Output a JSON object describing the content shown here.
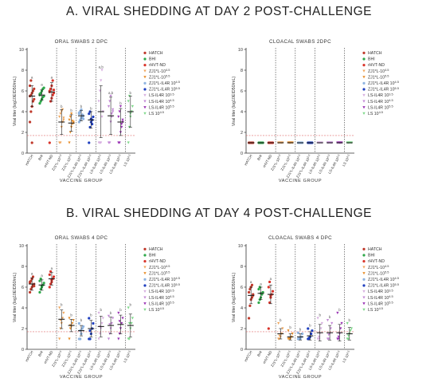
{
  "sections": [
    {
      "title": "A. VIRAL SHEDDING AT DAY 2 POST-CHALLENGE"
    },
    {
      "title": "B. VIRAL SHEDDING AT DAY 4 POST-CHALLENGE"
    }
  ],
  "groups": [
    "HATCH",
    "BHI",
    "rHVT-ND",
    "ZJ1*L-10^4.5",
    "ZJ1*L-10^5.5",
    "ZJ1*L-IL4R 10^4.5",
    "ZJ1*L-IL4R 10^5.5",
    "LS-IL4R 10^3.5",
    "LS-IL4R 10^4.5",
    "LS-IL4R 10^5.5",
    "LS 10^4.5"
  ],
  "legend_labels": [
    "HATCH",
    "BHI",
    "rHVT-ND",
    "ZJ1*L-10^4.5",
    "ZJ1*L-10^5.5",
    "ZJ1*L-IL4R 10^4.5",
    "ZJ1*L-IL4R 10^5.5",
    "LS-IL4R 10^3.5",
    "LS-IL4R 10^4.5",
    "LS-IL4R 10^5.5",
    "LS 10^4.5"
  ],
  "colors": [
    "#c0392b",
    "#2ea84a",
    "#d9342b",
    "#f0a860",
    "#e8902e",
    "#8fb4e0",
    "#1f3fbf",
    "#d8b0e0",
    "#c48ad6",
    "#9b35b5",
    "#7ed98a"
  ],
  "chart_data": [
    {
      "type": "scatter",
      "title": "ORAL SWABS 2 DPC",
      "xlabel": "VACCINE GROUP",
      "ylabel": "Viral titer (log10EID50/mL)",
      "ylim": [
        0,
        10
      ],
      "yticks": [
        0,
        2,
        4,
        6,
        8,
        10
      ],
      "detection_limit": 1.7,
      "separators_after_group": [
        2,
        4,
        6,
        9
      ],
      "means": [
        5.5,
        5.6,
        5.9,
        3.0,
        2.9,
        3.6,
        3.2,
        4.0,
        3.6,
        3.0,
        4.0
      ],
      "sd": [
        1.0,
        0.5,
        0.9,
        1.2,
        0.8,
        0.5,
        0.8,
        2.5,
        1.8,
        1.3,
        1.5
      ],
      "annotations": [
        "a",
        "a",
        "a",
        "b",
        "b",
        "b",
        "b",
        "a,b",
        "a,b",
        "b",
        "b"
      ],
      "points": [
        [
          3.0,
          4.0,
          4.5,
          5.0,
          5.2,
          5.5,
          5.6,
          5.8,
          6.0,
          6.2,
          6.5,
          7.0,
          1.0
        ],
        [
          4.8,
          5.0,
          5.2,
          5.4,
          5.5,
          5.6,
          5.8,
          6.0,
          6.2,
          6.3,
          5.7
        ],
        [
          1.0,
          5.0,
          5.3,
          5.6,
          5.8,
          6.0,
          6.2,
          6.5,
          7.0,
          6.1,
          5.9
        ],
        [
          1.0,
          1.0,
          2.5,
          3.0,
          3.2,
          3.5,
          3.8,
          4.0,
          4.2,
          3.4
        ],
        [
          1.0,
          2.0,
          2.5,
          2.8,
          3.0,
          3.2,
          3.5,
          3.8,
          3.1,
          2.9
        ],
        [
          3.0,
          3.2,
          3.4,
          3.5,
          3.6,
          3.8,
          4.0,
          4.2,
          3.7,
          3.3,
          3.9
        ],
        [
          1.0,
          2.5,
          3.0,
          3.2,
          3.5,
          3.8,
          4.0,
          3.3,
          2.8
        ],
        [
          1.0,
          1.0,
          1.0,
          3.5,
          4.0,
          5.0,
          6.0,
          7.0,
          8.0
        ],
        [
          1.0,
          1.0,
          3.0,
          3.5,
          4.0,
          4.5,
          5.0,
          5.5,
          3.8,
          4.2
        ],
        [
          1.0,
          1.0,
          2.0,
          2.5,
          3.0,
          3.5,
          4.0,
          4.5,
          2.8,
          3.2
        ],
        [
          1.0,
          2.5,
          3.5,
          4.0,
          4.5,
          5.0,
          5.5,
          3.8
        ]
      ]
    },
    {
      "type": "scatter",
      "title": "CLOACAL SWABS 2DPC",
      "xlabel": "VACCINE GROUP",
      "ylabel": "Viral titer (log10EID50/mL)",
      "ylim": [
        0,
        10
      ],
      "yticks": [
        0,
        2,
        4,
        6,
        8,
        10
      ],
      "detection_limit": 1.7,
      "separators_after_group": [
        2,
        4,
        6,
        9
      ],
      "means": [
        1.0,
        1.0,
        1.0,
        1.0,
        1.0,
        1.0,
        1.0,
        1.0,
        1.0,
        1.0,
        1.0
      ],
      "sd": [
        0,
        0,
        0,
        0,
        0,
        0,
        0,
        0,
        0,
        0,
        0
      ],
      "annotations": [
        "",
        "",
        "",
        "",
        "",
        "",
        "",
        "",
        "",
        "",
        ""
      ],
      "points": [
        [
          1.0,
          1.0,
          1.0,
          1.0,
          1.0
        ],
        [
          1.0,
          1.0,
          1.0,
          1.0,
          1.0
        ],
        [
          1.0,
          1.0,
          1.0,
          1.0,
          1.0
        ],
        [
          1.0,
          1.0,
          1.0,
          1.0,
          1.0
        ],
        [
          1.0,
          1.0,
          1.0,
          1.0,
          1.0
        ],
        [
          1.0,
          1.0,
          1.0,
          1.0,
          1.0
        ],
        [
          1.0,
          1.0,
          1.0,
          1.0,
          1.0
        ],
        [
          1.0,
          1.0,
          1.0,
          1.0,
          1.0
        ],
        [
          1.0,
          1.0,
          1.0,
          1.0,
          1.0
        ],
        [
          1.0,
          1.0,
          1.0,
          1.0,
          1.0
        ],
        [
          1.0,
          1.0,
          1.0,
          1.0,
          1.0
        ]
      ]
    },
    {
      "type": "scatter",
      "title": "ORAL SWABS 4 DPC",
      "xlabel": "VACCINE GROUP",
      "ylabel": "Viral titer (log10EID50/mL)",
      "ylim": [
        0,
        10
      ],
      "yticks": [
        0,
        2,
        4,
        6,
        8,
        10
      ],
      "detection_limit": 1.7,
      "separators_after_group": [
        2,
        4,
        6,
        9
      ],
      "means": [
        6.3,
        6.2,
        6.8,
        2.9,
        2.3,
        1.8,
        2.0,
        2.2,
        2.3,
        2.4,
        2.3
      ],
      "sd": [
        0.6,
        0.5,
        0.6,
        0.9,
        0.6,
        0.5,
        0.8,
        1.0,
        0.8,
        0.9,
        1.1
      ],
      "annotations": [
        "a",
        "a",
        "a",
        "b",
        "b",
        "b",
        "b",
        "b",
        "b",
        "b",
        "b"
      ],
      "points": [
        [
          5.5,
          5.8,
          6.0,
          6.2,
          6.3,
          6.5,
          6.6,
          6.8,
          7.0,
          6.1,
          6.4
        ],
        [
          5.5,
          5.8,
          6.0,
          6.2,
          6.4,
          6.6,
          6.8,
          6.1
        ],
        [
          6.0,
          6.3,
          6.5,
          6.8,
          7.0,
          7.2,
          7.5,
          6.7
        ],
        [
          1.0,
          2.0,
          2.5,
          3.0,
          3.5,
          4.0,
          2.8
        ],
        [
          1.0,
          2.0,
          2.2,
          2.5,
          2.8,
          3.0,
          2.3
        ],
        [
          1.0,
          1.0,
          1.5,
          2.0,
          2.2,
          2.5,
          1.8
        ],
        [
          1.0,
          1.0,
          1.5,
          2.0,
          2.5,
          3.0,
          1.8
        ],
        [
          1.0,
          1.5,
          2.0,
          2.5,
          3.0,
          3.5,
          2.2
        ],
        [
          1.0,
          1.5,
          2.0,
          2.5,
          3.0,
          3.2,
          2.4
        ],
        [
          1.0,
          1.5,
          2.0,
          2.5,
          3.0,
          3.5,
          2.7
        ],
        [
          1.0,
          1.0,
          2.0,
          2.5,
          3.0,
          4.0,
          2.5
        ]
      ]
    },
    {
      "type": "scatter",
      "title": "CLOACAL SWABS 4 DPC",
      "xlabel": "VACCINE GROUP",
      "ylabel": "Viral titer (log10EID50/mL)",
      "ylim": [
        0,
        10
      ],
      "yticks": [
        0,
        2,
        4,
        6,
        8,
        10
      ],
      "detection_limit": 1.7,
      "separators_after_group": [
        2,
        4,
        6,
        9
      ],
      "means": [
        5.2,
        5.4,
        5.3,
        1.5,
        1.2,
        1.2,
        1.3,
        1.6,
        1.6,
        1.6,
        1.5
      ],
      "sd": [
        0.8,
        0.6,
        0.9,
        0.5,
        0.3,
        0.3,
        0.4,
        0.8,
        0.7,
        0.8,
        0.6
      ],
      "annotations": [
        "a",
        "a",
        "a",
        "b",
        "b",
        "b",
        "b",
        "b",
        "b",
        "b",
        "b"
      ],
      "points": [
        [
          3.0,
          4.2,
          4.8,
          5.0,
          5.2,
          5.5,
          5.8,
          6.0,
          6.2,
          5.3
        ],
        [
          4.5,
          4.8,
          5.0,
          5.3,
          5.5,
          5.8,
          6.0,
          5.4
        ],
        [
          2.0,
          4.5,
          5.0,
          5.3,
          5.6,
          6.0,
          6.5,
          5.2
        ],
        [
          1.0,
          1.0,
          1.2,
          1.5,
          2.0,
          2.5,
          1.3
        ],
        [
          1.0,
          1.0,
          1.0,
          1.2,
          1.5,
          1.8,
          1.1
        ],
        [
          1.0,
          1.0,
          1.0,
          1.2,
          1.5,
          1.6,
          1.1
        ],
        [
          1.0,
          1.0,
          1.2,
          1.5,
          1.8,
          2.0,
          1.1
        ],
        [
          1.0,
          1.0,
          1.5,
          2.0,
          2.5,
          3.0,
          1.2
        ],
        [
          1.0,
          1.0,
          1.5,
          2.0,
          2.5,
          2.8,
          1.4
        ],
        [
          1.0,
          1.0,
          1.5,
          2.0,
          2.5,
          3.5,
          1.2
        ],
        [
          1.0,
          1.0,
          1.5,
          1.8,
          2.0,
          2.5,
          1.3
        ]
      ]
    }
  ]
}
